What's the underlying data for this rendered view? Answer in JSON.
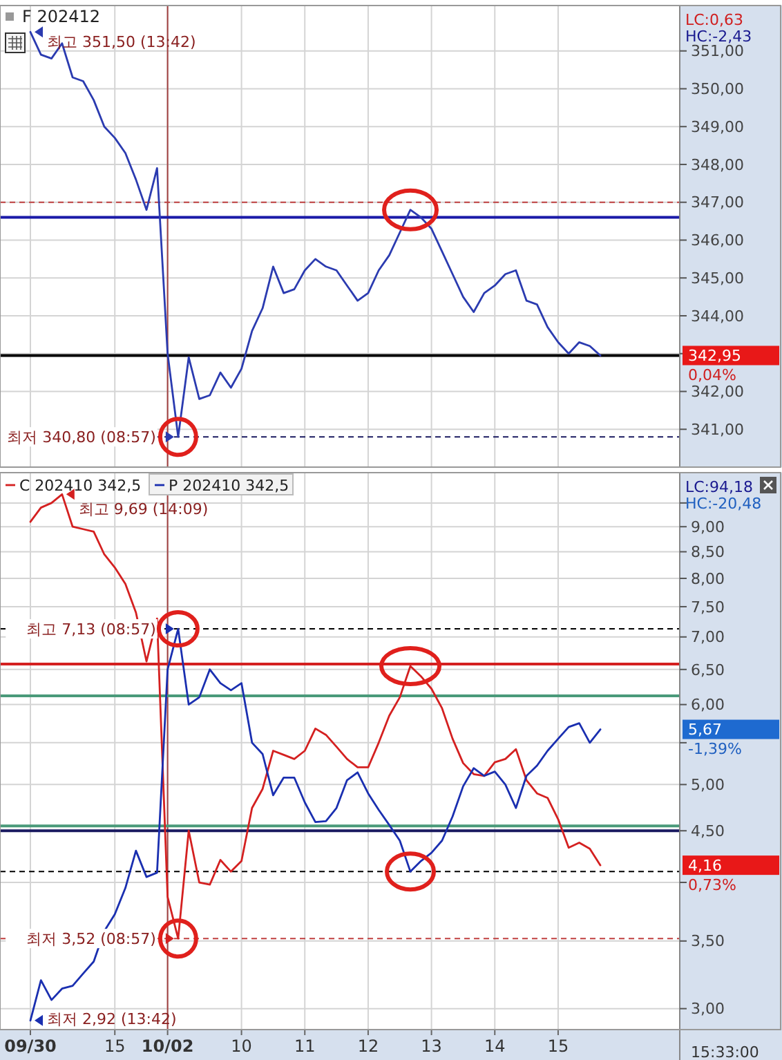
{
  "chart_data": [
    {
      "type": "line",
      "title": "F 202412",
      "grid": true,
      "tick_labels": "y",
      "categories": [
        "09/30",
        null,
        null,
        null,
        null,
        null,
        null,
        null,
        "15",
        null,
        null,
        null,
        null,
        "10/02",
        null,
        null,
        null,
        null,
        null,
        null,
        "10",
        null,
        null,
        null,
        null,
        null,
        "11",
        null,
        null,
        null,
        null,
        null,
        "12",
        null,
        null,
        null,
        null,
        null,
        "13",
        null,
        null,
        null,
        null,
        null,
        "14",
        null,
        null,
        null,
        null,
        null,
        "15",
        null,
        null,
        null,
        null,
        null,
        null,
        null,
        null,
        null,
        null,
        null
      ],
      "ylim": [
        340.0,
        352.2
      ],
      "yticks": [
        {
          "value": 341,
          "label": "341,00"
        },
        {
          "value": 342,
          "label": "342,00"
        },
        {
          "value": 343,
          "label": null
        },
        {
          "value": 344,
          "label": "344,00"
        },
        {
          "value": 345,
          "label": "345,00"
        },
        {
          "value": 346,
          "label": "346,00"
        },
        {
          "value": 347,
          "label": "347,00"
        },
        {
          "value": 348,
          "label": "348,00"
        },
        {
          "value": 349,
          "label": "349,00"
        },
        {
          "value": 350,
          "label": "350,00"
        },
        {
          "value": 351,
          "label": "351,00"
        }
      ],
      "series": [
        {
          "color": "#2b3bb0",
          "values": [
            351.5,
            350.9,
            350.8,
            351.2,
            350.3,
            350.2,
            349.7,
            349.0,
            348.7,
            348.3,
            347.6,
            346.8,
            347.9,
            343.0,
            340.8,
            342.9,
            341.8,
            341.9,
            342.5,
            342.1,
            342.6,
            343.6,
            344.2,
            345.3,
            344.6,
            344.7,
            345.2,
            345.5,
            345.3,
            345.2,
            344.8,
            344.4,
            344.6,
            345.2,
            345.6,
            346.2,
            346.8,
            346.6,
            346.3,
            345.7,
            345.1,
            344.5,
            344.1,
            344.6,
            344.8,
            345.1,
            345.2,
            344.4,
            344.3,
            343.7,
            343.3,
            343.0,
            343.3,
            343.2,
            342.95,
            null,
            null,
            null,
            null,
            null,
            null,
            null
          ]
        }
      ],
      "ref_lines": [
        {
          "axis": "x",
          "value": "10/02",
          "color": "#a04040"
        },
        {
          "axis": "y",
          "value": 347.0,
          "color": "#c04040",
          "line_style": "dashed"
        },
        {
          "axis": "y",
          "value": 346.6,
          "color": "#1a1aa8"
        },
        {
          "axis": "y",
          "value": 342.95,
          "color": "#000000"
        },
        {
          "axis": "y",
          "value": 340.8,
          "color": "#1a1a60",
          "line_style": "dashed"
        }
      ],
      "annotations": [
        "최고 351,50 (13:42)",
        "최저 340,80 (08:57)",
        "LC:0,63",
        "HC:-2,43",
        "342,95",
        "0,04%"
      ]
    },
    {
      "type": "line",
      "log": "y",
      "legend": "top left",
      "grid": true,
      "categories": [
        "09/30",
        null,
        null,
        null,
        null,
        null,
        null,
        null,
        "15",
        null,
        null,
        null,
        null,
        "10/02",
        null,
        null,
        null,
        null,
        null,
        null,
        "10",
        null,
        null,
        null,
        null,
        null,
        "11",
        null,
        null,
        null,
        null,
        null,
        "12",
        null,
        null,
        null,
        null,
        null,
        "13",
        null,
        null,
        null,
        null,
        null,
        "14",
        null,
        null,
        null,
        null,
        null,
        "15",
        null,
        null,
        null,
        null,
        null,
        null,
        null,
        null,
        null,
        null,
        null
      ],
      "ylim": [
        2.86,
        10.18
      ],
      "yticks": [
        {
          "value": 3,
          "label": "3,00"
        },
        {
          "value": 3.5,
          "label": "3,50"
        },
        {
          "value": 4,
          "label": null
        },
        {
          "value": 4.5,
          "label": "4,50"
        },
        {
          "value": 5,
          "label": "5,00"
        },
        {
          "value": 5.5,
          "label": null
        },
        {
          "value": 6,
          "label": "6,00"
        },
        {
          "value": 6.5,
          "label": "6,50"
        },
        {
          "value": 7,
          "label": "7,00"
        },
        {
          "value": 7.5,
          "label": "7,50"
        },
        {
          "value": 8,
          "label": "8,00"
        },
        {
          "value": 8.5,
          "label": "8,50"
        },
        {
          "value": 9,
          "label": "9,00"
        },
        {
          "value": 9.5,
          "label": null
        }
      ],
      "series": [
        {
          "name": "C 202410 342,5",
          "color": "#d42020",
          "values": [
            9.1,
            9.4,
            9.5,
            9.69,
            9.0,
            8.95,
            8.9,
            8.45,
            8.2,
            7.9,
            7.4,
            6.62,
            7.3,
            3.87,
            3.52,
            4.5,
            4.0,
            3.98,
            4.21,
            4.1,
            4.2,
            4.74,
            4.95,
            5.4,
            5.35,
            5.3,
            5.4,
            5.68,
            5.6,
            5.45,
            5.3,
            5.2,
            5.2,
            5.5,
            5.85,
            6.1,
            6.55,
            6.4,
            6.22,
            5.95,
            5.55,
            5.25,
            5.12,
            5.1,
            5.26,
            5.3,
            5.42,
            5.05,
            4.9,
            4.85,
            4.62,
            4.33,
            4.38,
            4.32,
            4.16,
            null,
            null,
            null,
            null,
            null,
            null,
            null
          ]
        },
        {
          "name": "P 202410 342,5",
          "color": "#1a2fb0",
          "values": [
            2.92,
            3.2,
            3.06,
            3.14,
            3.16,
            3.25,
            3.34,
            3.58,
            3.72,
            3.95,
            4.3,
            4.05,
            4.09,
            6.5,
            7.13,
            6.0,
            6.1,
            6.5,
            6.3,
            6.2,
            6.3,
            5.5,
            5.36,
            4.88,
            5.08,
            5.08,
            4.8,
            4.59,
            4.6,
            4.74,
            5.05,
            5.14,
            4.9,
            4.72,
            4.56,
            4.4,
            4.1,
            4.2,
            4.28,
            4.4,
            4.65,
            4.98,
            5.19,
            5.1,
            5.15,
            5.0,
            4.74,
            5.1,
            5.22,
            5.4,
            5.55,
            5.7,
            5.75,
            5.5,
            5.67,
            null,
            null,
            null,
            null,
            null,
            null,
            null
          ]
        }
      ],
      "ref_lines": [
        {
          "axis": "x",
          "value": "10/02",
          "color": "#a04040"
        },
        {
          "axis": "y",
          "value": 7.13,
          "color": "#000000",
          "line_style": "dashed"
        },
        {
          "axis": "y",
          "value": 6.58,
          "color": "#d42020"
        },
        {
          "axis": "y",
          "value": 6.12,
          "color": "#4a9a7a"
        },
        {
          "axis": "y",
          "value": 4.55,
          "color": "#4a9a7a"
        },
        {
          "axis": "y",
          "value": 4.5,
          "color": "#1a1a60"
        },
        {
          "axis": "y",
          "value": 4.1,
          "color": "#000000",
          "line_style": "dashed"
        },
        {
          "axis": "y",
          "value": 3.52,
          "color": "#c04040",
          "line_style": "dashed"
        }
      ],
      "annotations": [
        "최고 9,69 (14:09)",
        "최고 7,13 (08:57)",
        "최저 3,52 (08:57)",
        "최저 2,92 (13:42)",
        "LC:94,18",
        "HC:-20,48",
        "5,67",
        "-1,39%",
        "4,16",
        "0,73%",
        "15:33:00"
      ]
    }
  ]
}
